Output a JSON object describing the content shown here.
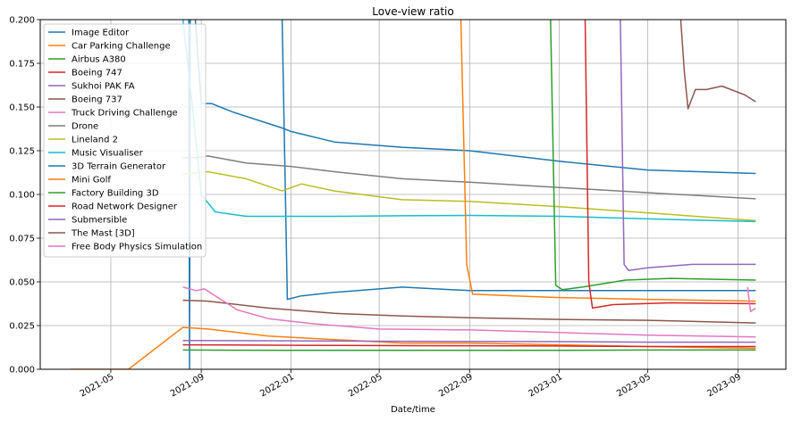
{
  "chart_data": {
    "type": "line",
    "title": "Love-view ratio",
    "xlabel": "Date/time",
    "ylabel": "",
    "xlim": [
      "2021-01-25",
      "2023-11-05"
    ],
    "ylim": [
      0,
      0.2
    ],
    "grid": true,
    "legend_position": "top-left",
    "x_ticks": [
      "2021-05",
      "2021-09",
      "2022-01",
      "2022-05",
      "2022-09",
      "2023-01",
      "2023-05",
      "2023-09"
    ],
    "y_ticks": [
      "0.000",
      "0.025",
      "0.050",
      "0.075",
      "0.100",
      "0.125",
      "0.150",
      "0.175",
      "0.200"
    ],
    "series": [
      {
        "name": "Image Editor",
        "color": "#1f77b4",
        "points": [
          [
            "2021-08-15",
            0.21
          ],
          [
            "2021-08-16",
            0.0
          ],
          [
            "2021-08-17",
            0.21
          ]
        ]
      },
      {
        "name": "Car Parking Challenge",
        "color": "#ff7f0e",
        "points": [
          [
            "2021-03-07",
            0.0
          ],
          [
            "2021-05-25",
            0.0
          ],
          [
            "2021-08-07",
            0.024
          ],
          [
            "2021-09-10",
            0.023
          ],
          [
            "2021-12-01",
            0.019
          ],
          [
            "2022-03-01",
            0.017
          ],
          [
            "2022-06-01",
            0.015
          ],
          [
            "2022-09-01",
            0.015
          ],
          [
            "2023-01-01",
            0.014
          ],
          [
            "2023-05-01",
            0.013
          ],
          [
            "2023-09-25",
            0.012
          ]
        ]
      },
      {
        "name": "Airbus A380",
        "color": "#2ca02c",
        "points": [
          [
            "2021-08-07",
            0.011
          ],
          [
            "2022-01-01",
            0.0108
          ],
          [
            "2022-06-01",
            0.0108
          ],
          [
            "2023-01-01",
            0.0108
          ],
          [
            "2023-05-01",
            0.011
          ],
          [
            "2023-09-25",
            0.011
          ]
        ]
      },
      {
        "name": "Boeing 747",
        "color": "#d62728",
        "points": [
          [
            "2021-08-07",
            0.014
          ],
          [
            "2022-01-01",
            0.0137
          ],
          [
            "2022-06-01",
            0.0135
          ],
          [
            "2023-01-01",
            0.0133
          ],
          [
            "2023-05-01",
            0.013
          ],
          [
            "2023-09-25",
            0.013
          ]
        ]
      },
      {
        "name": "Sukhoi PAK FA",
        "color": "#9467bd",
        "points": [
          [
            "2021-08-07",
            0.0165
          ],
          [
            "2022-01-01",
            0.0163
          ],
          [
            "2022-06-01",
            0.016
          ],
          [
            "2023-01-01",
            0.0158
          ],
          [
            "2023-05-01",
            0.0155
          ],
          [
            "2023-09-25",
            0.0155
          ]
        ]
      },
      {
        "name": "Boeing 737",
        "color": "#8c564b",
        "points": [
          [
            "2021-08-07",
            0.0395
          ],
          [
            "2021-09-10",
            0.039
          ],
          [
            "2021-12-01",
            0.035
          ],
          [
            "2022-03-01",
            0.032
          ],
          [
            "2022-06-01",
            0.0305
          ],
          [
            "2022-09-01",
            0.0295
          ],
          [
            "2023-01-01",
            0.0285
          ],
          [
            "2023-05-01",
            0.028
          ],
          [
            "2023-09-25",
            0.0265
          ]
        ]
      },
      {
        "name": "Truck Driving Challenge",
        "color": "#e377c2",
        "points": [
          [
            "2021-08-07",
            0.047
          ],
          [
            "2021-08-25",
            0.045
          ],
          [
            "2021-09-05",
            0.046
          ],
          [
            "2021-09-20",
            0.042
          ],
          [
            "2021-10-20",
            0.034
          ],
          [
            "2021-12-01",
            0.029
          ],
          [
            "2022-02-01",
            0.026
          ],
          [
            "2022-05-01",
            0.023
          ],
          [
            "2022-09-01",
            0.0225
          ],
          [
            "2023-01-01",
            0.021
          ],
          [
            "2023-05-01",
            0.0195
          ],
          [
            "2023-09-25",
            0.0185
          ]
        ]
      },
      {
        "name": "Drone",
        "color": "#7f7f7f",
        "points": [
          [
            "2021-08-07",
            0.121
          ],
          [
            "2021-08-25",
            0.121
          ],
          [
            "2021-09-10",
            0.122
          ],
          [
            "2021-11-01",
            0.118
          ],
          [
            "2022-01-01",
            0.116
          ],
          [
            "2022-03-01",
            0.113
          ],
          [
            "2022-06-01",
            0.109
          ],
          [
            "2022-09-01",
            0.107
          ],
          [
            "2023-01-01",
            0.104
          ],
          [
            "2023-05-01",
            0.101
          ],
          [
            "2023-09-25",
            0.0975
          ]
        ]
      },
      {
        "name": "Lineland 2",
        "color": "#bcbd22",
        "points": [
          [
            "2021-08-07",
            0.1115
          ],
          [
            "2021-09-10",
            0.113
          ],
          [
            "2021-11-01",
            0.109
          ],
          [
            "2021-12-20",
            0.102
          ],
          [
            "2022-01-15",
            0.106
          ],
          [
            "2022-03-01",
            0.102
          ],
          [
            "2022-06-01",
            0.097
          ],
          [
            "2022-09-01",
            0.096
          ],
          [
            "2023-01-01",
            0.093
          ],
          [
            "2023-05-01",
            0.0895
          ],
          [
            "2023-09-25",
            0.085
          ]
        ]
      },
      {
        "name": "Music Visualiser",
        "color": "#17becf",
        "points": [
          [
            "2021-08-07",
            0.2
          ],
          [
            "2021-08-20",
            0.15
          ],
          [
            "2021-09-01",
            0.1
          ],
          [
            "2021-09-20",
            0.09
          ],
          [
            "2021-11-01",
            0.0875
          ],
          [
            "2022-03-01",
            0.0875
          ],
          [
            "2022-06-01",
            0.0878
          ],
          [
            "2022-09-01",
            0.088
          ],
          [
            "2023-01-01",
            0.0875
          ],
          [
            "2023-05-01",
            0.086
          ],
          [
            "2023-09-25",
            0.0845
          ]
        ]
      },
      {
        "name": "3D Terrain Generator",
        "color": "#1f77b4",
        "points": [
          [
            "2021-08-24",
            0.2
          ],
          [
            "2021-09-01",
            0.152
          ],
          [
            "2021-09-15",
            0.152
          ],
          [
            "2021-10-15",
            0.147
          ],
          [
            "2021-12-20",
            0.138
          ],
          [
            "2022-01-01",
            0.136
          ],
          [
            "2022-03-01",
            0.13
          ],
          [
            "2022-06-01",
            0.127
          ],
          [
            "2022-09-01",
            0.125
          ],
          [
            "2023-01-01",
            0.119
          ],
          [
            "2023-05-01",
            0.114
          ],
          [
            "2023-09-25",
            0.112
          ]
        ]
      },
      {
        "name": "Mini Golf",
        "color": "#ff7f0e",
        "points": [
          [
            "2022-08-20",
            0.2
          ],
          [
            "2022-08-28",
            0.06
          ],
          [
            "2022-09-05",
            0.043
          ],
          [
            "2022-11-01",
            0.042
          ],
          [
            "2023-01-01",
            0.041
          ],
          [
            "2023-05-01",
            0.04
          ],
          [
            "2023-09-25",
            0.039
          ]
        ]
      },
      {
        "name": "Factory Building 3D",
        "color": "#2ca02c",
        "points": [
          [
            "2022-12-20",
            0.2
          ],
          [
            "2022-12-27",
            0.048
          ],
          [
            "2023-01-05",
            0.0455
          ],
          [
            "2023-02-01",
            0.047
          ],
          [
            "2023-04-01",
            0.051
          ],
          [
            "2023-06-01",
            0.052
          ],
          [
            "2023-09-25",
            0.051
          ]
        ]
      },
      {
        "name": "Road Network Designer",
        "color": "#d62728",
        "points": [
          [
            "2023-02-05",
            0.2
          ],
          [
            "2023-02-10",
            0.05
          ],
          [
            "2023-02-15",
            0.035
          ],
          [
            "2023-03-15",
            0.037
          ],
          [
            "2023-06-01",
            0.038
          ],
          [
            "2023-09-25",
            0.0375
          ]
        ]
      },
      {
        "name": "Submersible",
        "color": "#9467bd",
        "points": [
          [
            "2023-03-25",
            0.2
          ],
          [
            "2023-03-30",
            0.06
          ],
          [
            "2023-04-05",
            0.0565
          ],
          [
            "2023-05-01",
            0.058
          ],
          [
            "2023-07-01",
            0.06
          ],
          [
            "2023-09-25",
            0.06
          ]
        ]
      },
      {
        "name": "The Mast [3D]",
        "color": "#8c564b",
        "points": [
          [
            "2023-06-15",
            0.2
          ],
          [
            "2023-06-20",
            0.17
          ],
          [
            "2023-06-25",
            0.149
          ],
          [
            "2023-07-05",
            0.16
          ],
          [
            "2023-07-20",
            0.16
          ],
          [
            "2023-08-10",
            0.162
          ],
          [
            "2023-09-10",
            0.157
          ],
          [
            "2023-09-25",
            0.153
          ]
        ]
      },
      {
        "name": "Free Body Physics Simulation",
        "color": "#e377c2",
        "points": [
          [
            "2023-09-14",
            0.047
          ],
          [
            "2023-09-18",
            0.033
          ],
          [
            "2023-09-25",
            0.035
          ]
        ]
      }
    ],
    "extra_lines": [
      {
        "color": "#1f77b4",
        "points": [
          [
            "2021-12-20",
            0.2
          ],
          [
            "2021-12-27",
            0.04
          ],
          [
            "2022-01-15",
            0.042
          ],
          [
            "2022-03-01",
            0.044
          ],
          [
            "2022-06-01",
            0.047
          ],
          [
            "2022-09-01",
            0.045
          ],
          [
            "2023-01-01",
            0.045
          ],
          [
            "2023-05-01",
            0.045
          ],
          [
            "2023-09-25",
            0.045
          ]
        ]
      }
    ]
  }
}
